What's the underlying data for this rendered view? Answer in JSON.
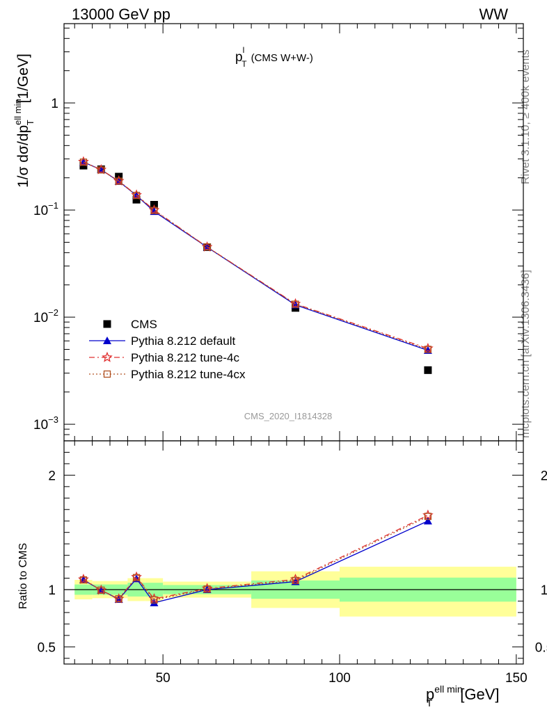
{
  "header": {
    "left_label": "13000 GeV pp",
    "right_label": "WW"
  },
  "side_texts": {
    "rivet": "Rivet 3.1.10, ≥ 400k events",
    "mcplots": "mcplots.cern.ch [arXiv:1306.3436]"
  },
  "plot_title": {
    "main": "p",
    "sup": "l",
    "sub": "T",
    "suffix": "(CMS W+W-)"
  },
  "watermark": "CMS_2020_I1814328",
  "ylabel_top": {
    "prefix": "1/σ dσ/dp",
    "sub": "T",
    "sup": "ell min",
    "unit": "[1/GeV]"
  },
  "ylabel_bottom": "Ratio to CMS",
  "xlabel": {
    "main": "p",
    "sub": "T",
    "sup": "ell min",
    "unit": "[GeV]"
  },
  "legend": [
    {
      "label": "CMS",
      "color": "#000000",
      "marker": "square"
    },
    {
      "label": "Pythia 8.212 default",
      "color": "#0000cc",
      "marker": "triangle"
    },
    {
      "label": "Pythia 8.212 tune-4c",
      "color": "#e03030",
      "marker": "star"
    },
    {
      "label": "Pythia 8.212 tune-4cx",
      "color": "#b05020",
      "marker": "open-square"
    }
  ],
  "chart_data": {
    "type": "line",
    "xlim": [
      22,
      152
    ],
    "ylim_top": [
      0.0007,
      5.5
    ],
    "ylog_top": true,
    "ylim_bottom": [
      0.35,
      2.3
    ],
    "x_ticks": [
      50,
      100,
      150
    ],
    "x_tick_labels": [
      "50",
      "100",
      "150"
    ],
    "y_ticks_top": [
      0.001,
      0.01,
      0.1,
      1
    ],
    "y_tick_labels_top": [
      {
        "base": "10",
        "exp": "−3"
      },
      {
        "base": "10",
        "exp": "−2"
      },
      {
        "base": "10",
        "exp": "−1"
      },
      {
        "base": "1",
        "exp": ""
      }
    ],
    "y_ticks_bottom": [
      0.5,
      1,
      2
    ],
    "y_tick_labels_bottom": [
      "0.5",
      "1",
      "2"
    ],
    "x": [
      27.5,
      32.5,
      37.5,
      42.5,
      47.5,
      62.5,
      87.5,
      125
    ],
    "bin_edges": [
      25,
      30,
      35,
      40,
      45,
      50,
      75,
      100,
      150
    ],
    "series": [
      {
        "name": "CMS",
        "values": [
          0.26,
          0.24,
          0.205,
          0.125,
          0.112,
          0.045,
          0.0122,
          0.0032
        ]
      },
      {
        "name": "Pythia 8.212 default",
        "values": [
          0.28,
          0.238,
          0.185,
          0.137,
          0.097,
          0.045,
          0.013,
          0.0049
        ]
      },
      {
        "name": "Pythia 8.212 tune-4c",
        "values": [
          0.282,
          0.238,
          0.187,
          0.138,
          0.1,
          0.0452,
          0.0133,
          0.0051
        ]
      },
      {
        "name": "Pythia 8.212 tune-4cx",
        "values": [
          0.28,
          0.237,
          0.186,
          0.137,
          0.099,
          0.0452,
          0.0132,
          0.005
        ]
      }
    ],
    "ratio_series": [
      {
        "name": "Pythia 8.212 default",
        "values": [
          1.085,
          0.995,
          0.915,
          1.095,
          0.885,
          1.0,
          1.07,
          1.6
        ]
      },
      {
        "name": "Pythia 8.212 tune-4c",
        "values": [
          1.09,
          0.995,
          0.92,
          1.11,
          0.92,
          1.01,
          1.09,
          1.65
        ]
      },
      {
        "name": "Pythia 8.212 tune-4cx",
        "values": [
          1.085,
          0.995,
          0.92,
          1.105,
          0.91,
          1.005,
          1.08,
          1.64
        ]
      }
    ],
    "ratio_band_inner": [
      {
        "lo": 0.955,
        "hi": 1.045
      },
      {
        "lo": 0.955,
        "hi": 1.045
      },
      {
        "lo": 0.955,
        "hi": 1.045
      },
      {
        "lo": 0.94,
        "hi": 1.06
      },
      {
        "lo": 0.94,
        "hi": 1.06
      },
      {
        "lo": 0.96,
        "hi": 1.04
      },
      {
        "lo": 0.92,
        "hi": 1.08
      },
      {
        "lo": 0.895,
        "hi": 1.105
      }
    ],
    "ratio_band_outer": [
      {
        "lo": 0.915,
        "hi": 1.085
      },
      {
        "lo": 0.925,
        "hi": 1.075
      },
      {
        "lo": 0.925,
        "hi": 1.075
      },
      {
        "lo": 0.9,
        "hi": 1.1
      },
      {
        "lo": 0.9,
        "hi": 1.1
      },
      {
        "lo": 0.93,
        "hi": 1.07
      },
      {
        "lo": 0.84,
        "hi": 1.16
      },
      {
        "lo": 0.765,
        "hi": 1.2
      }
    ],
    "band_colors": {
      "inner": "#99ff99",
      "outer": "#ffff99"
    }
  }
}
